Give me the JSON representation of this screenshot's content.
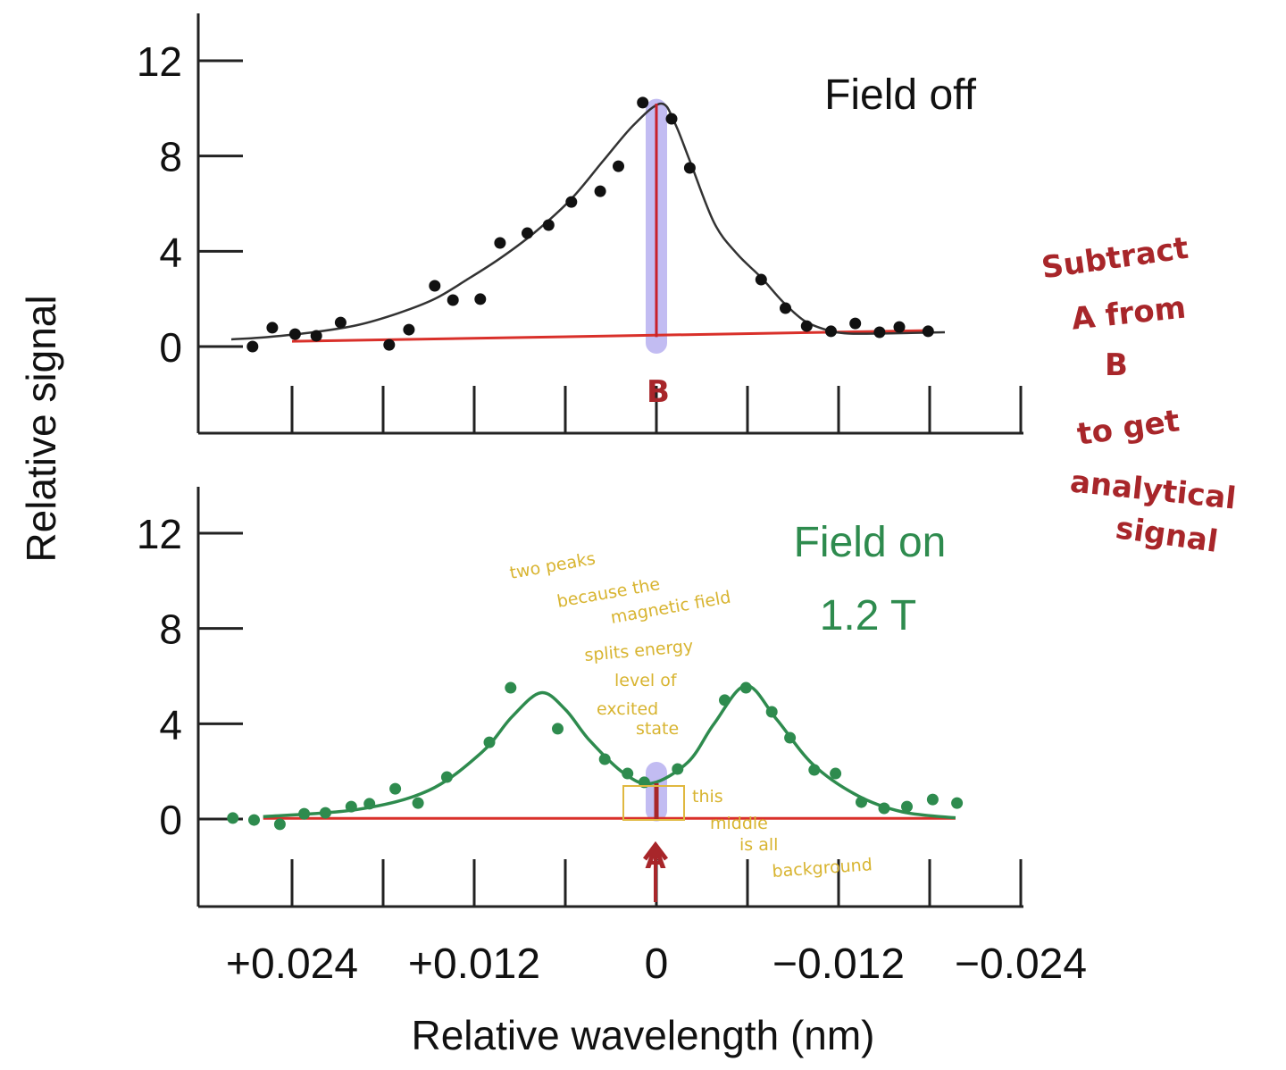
{
  "chart_data": [
    {
      "type": "scatter",
      "panel": "top",
      "title": "Field off",
      "ylabel": "Relative signal",
      "xlabel": "Relative wavelength (nm)",
      "xlim": [
        0.03,
        -0.024
      ],
      "ylim": [
        -3.6,
        14
      ],
      "x_reversed": true,
      "yticks": [
        0,
        4,
        8,
        12
      ],
      "ytick_labels": [
        "0",
        "4",
        "8",
        "12"
      ],
      "xticks": [
        0.024,
        0.018,
        0.012,
        0.006,
        0,
        -0.006,
        -0.012,
        -0.018,
        -0.024
      ],
      "colors": {
        "points": "#111111",
        "fit": "#333333",
        "baseline": "#d9302a",
        "highlight": "#b7b0f0"
      },
      "points": [
        [
          0.0266,
          0.0
        ],
        [
          0.0253,
          0.79
        ],
        [
          0.0238,
          0.52
        ],
        [
          0.0224,
          0.45
        ],
        [
          0.0208,
          1.01
        ],
        [
          0.0176,
          0.07
        ],
        [
          0.0163,
          0.71
        ],
        [
          0.0146,
          2.55
        ],
        [
          0.0134,
          1.95
        ],
        [
          0.0116,
          1.99
        ],
        [
          0.0103,
          4.35
        ],
        [
          0.0085,
          4.76
        ],
        [
          0.0071,
          5.1
        ],
        [
          0.0056,
          6.07
        ],
        [
          0.0037,
          6.52
        ],
        [
          0.0025,
          7.57
        ],
        [
          0.0009,
          10.24
        ],
        [
          -0.001,
          9.56
        ],
        [
          -0.0022,
          7.5
        ],
        [
          -0.0069,
          2.81
        ],
        [
          -0.0085,
          1.61
        ],
        [
          -0.0099,
          0.86
        ],
        [
          -0.0115,
          0.64
        ],
        [
          -0.0131,
          0.97
        ],
        [
          -0.0147,
          0.6
        ],
        [
          -0.016,
          0.82
        ],
        [
          -0.0179,
          0.64
        ]
      ],
      "fit_curve": [
        [
          0.028,
          0.3
        ],
        [
          0.0256,
          0.4
        ],
        [
          0.0226,
          0.6
        ],
        [
          0.0197,
          0.9
        ],
        [
          0.017,
          1.4
        ],
        [
          0.0146,
          2.0
        ],
        [
          0.0125,
          2.8
        ],
        [
          0.0103,
          3.7
        ],
        [
          0.008,
          4.8
        ],
        [
          0.0056,
          6.2
        ],
        [
          0.0035,
          7.8
        ],
        [
          0.0015,
          9.3
        ],
        [
          -0.0003,
          10.2
        ],
        [
          -0.0012,
          9.4
        ],
        [
          -0.0022,
          7.8
        ],
        [
          -0.0038,
          5.2
        ],
        [
          -0.0053,
          3.9
        ],
        [
          -0.0069,
          2.9
        ],
        [
          -0.0083,
          1.9
        ],
        [
          -0.0097,
          1.1
        ],
        [
          -0.0112,
          0.7
        ],
        [
          -0.0126,
          0.55
        ],
        [
          -0.015,
          0.55
        ],
        [
          -0.019,
          0.6
        ]
      ],
      "baseline": [
        [
          0.024,
          0.22
        ],
        [
          -0.018,
          0.67
        ]
      ],
      "marker_line": {
        "x": 0,
        "y_from": 0.4,
        "y_to": 10.2
      },
      "marker_label": "B"
    },
    {
      "type": "scatter",
      "panel": "bottom",
      "title": "Field on",
      "subtitle": "1.2 T",
      "xlim": [
        0.03,
        -0.024
      ],
      "ylim": [
        -3.6,
        14
      ],
      "x_reversed": true,
      "yticks": [
        0,
        4,
        8,
        12
      ],
      "ytick_labels": [
        "0",
        "4",
        "8",
        "12"
      ],
      "xtick_labels": [
        {
          "value": 0.024,
          "label": "+0.024"
        },
        {
          "value": 0.012,
          "label": "+0.012"
        },
        {
          "value": 0,
          "label": "0"
        },
        {
          "value": -0.012,
          "label": "−0.012"
        },
        {
          "value": -0.024,
          "label": "−0.024"
        }
      ],
      "colors": {
        "points": "#2e8b4e",
        "fit": "#2e8b4e",
        "title": "#2e8b4e",
        "baseline": "#d9302a",
        "highlight": "#b7b0f0"
      },
      "points": [
        [
          0.0279,
          0.04
        ],
        [
          0.0265,
          -0.04
        ],
        [
          0.0248,
          -0.22
        ],
        [
          0.0232,
          0.22
        ],
        [
          0.0218,
          0.26
        ],
        [
          0.0201,
          0.52
        ],
        [
          0.0189,
          0.64
        ],
        [
          0.0172,
          1.27
        ],
        [
          0.0157,
          0.67
        ],
        [
          0.0138,
          1.76
        ],
        [
          0.011,
          3.22
        ],
        [
          0.0096,
          5.51
        ],
        [
          0.0065,
          3.79
        ],
        [
          0.0034,
          2.51
        ],
        [
          0.0019,
          1.91
        ],
        [
          0.0008,
          1.54
        ],
        [
          -0.0014,
          2.1
        ],
        [
          -0.0045,
          4.99
        ],
        [
          -0.0059,
          5.51
        ],
        [
          -0.0076,
          4.5
        ],
        [
          -0.0088,
          3.41
        ],
        [
          -0.0104,
          2.06
        ],
        [
          -0.0118,
          1.91
        ],
        [
          -0.0135,
          0.71
        ],
        [
          -0.015,
          0.45
        ],
        [
          -0.0165,
          0.52
        ],
        [
          -0.0182,
          0.82
        ],
        [
          -0.0198,
          0.67
        ]
      ],
      "fit_curve": [
        [
          0.0259,
          0.1
        ],
        [
          0.0197,
          0.4
        ],
        [
          0.015,
          1.2
        ],
        [
          0.0115,
          2.8
        ],
        [
          0.0095,
          4.3
        ],
        [
          0.0076,
          5.3
        ],
        [
          0.006,
          4.6
        ],
        [
          0.0044,
          3.3
        ],
        [
          0.0021,
          1.9
        ],
        [
          0.0003,
          1.5
        ],
        [
          -0.0021,
          2.4
        ],
        [
          -0.0038,
          4.0
        ],
        [
          -0.0059,
          5.6
        ],
        [
          -0.0079,
          4.2
        ],
        [
          -0.0103,
          2.3
        ],
        [
          -0.0132,
          1.0
        ],
        [
          -0.0162,
          0.3
        ],
        [
          -0.0197,
          0.05
        ]
      ],
      "baseline": [
        [
          0.0259,
          0.03
        ],
        [
          -0.0197,
          0.03
        ]
      ],
      "marker_line": {
        "x": 0,
        "y_from": 0,
        "y_to": 1.5
      },
      "marker_label": "A"
    }
  ],
  "annotations": {
    "side_note": [
      "Subtract",
      "A from",
      "B",
      "to get",
      "analytical",
      "signal"
    ],
    "peaks_note": [
      "two peaks",
      "because the",
      "magnetic field",
      "splits energy",
      "level of",
      "excited",
      "state"
    ],
    "middle_note": [
      "this",
      "middle",
      "is all",
      "background"
    ],
    "colors": {
      "red_ink": "#a8262a",
      "yellow_ink": "#d8b430"
    }
  }
}
